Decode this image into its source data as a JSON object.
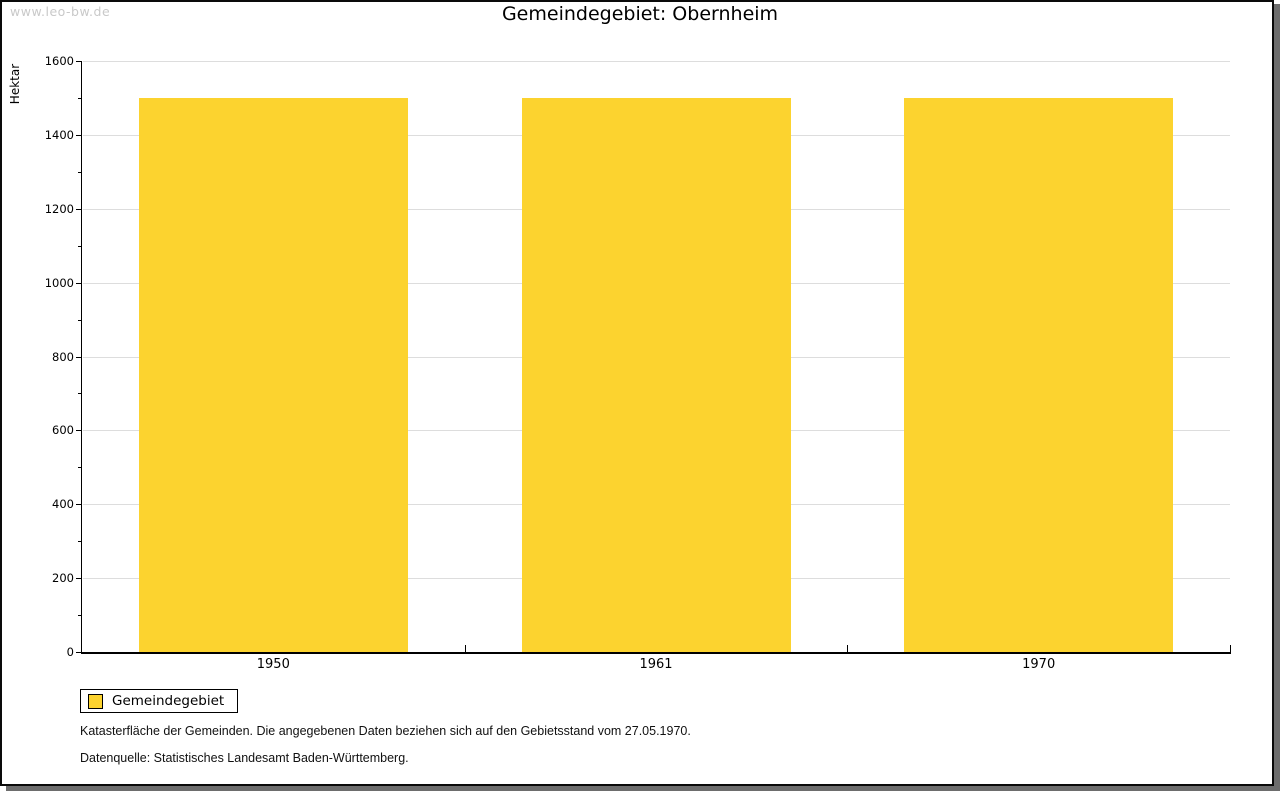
{
  "watermark": "www.leo-bw.de",
  "chart_data": {
    "type": "bar",
    "title": "Gemeindegebiet: Obernheim",
    "categories": [
      "1950",
      "1961",
      "1970"
    ],
    "series": [
      {
        "name": "Gemeindegebiet",
        "values": [
          1500,
          1500,
          1500
        ]
      }
    ],
    "xlabel": "",
    "ylabel": "Hektar",
    "ylim": [
      0,
      1600
    ],
    "ytick_step": 200,
    "yminor_step": 100,
    "grid": true,
    "legend_position": "bottom-left",
    "bar_color": "#fcd32f",
    "gridline_color": "#dddddd"
  },
  "legend": {
    "items": [
      {
        "label": "Gemeindegebiet",
        "color": "#fcd32f"
      }
    ]
  },
  "footer": {
    "line1": "Katasterfläche der Gemeinden. Die angegebenen Daten beziehen sich auf den Gebietsstand vom 27.05.1970.",
    "line2": "Datenquelle: Statistisches Landesamt Baden-Württemberg."
  }
}
